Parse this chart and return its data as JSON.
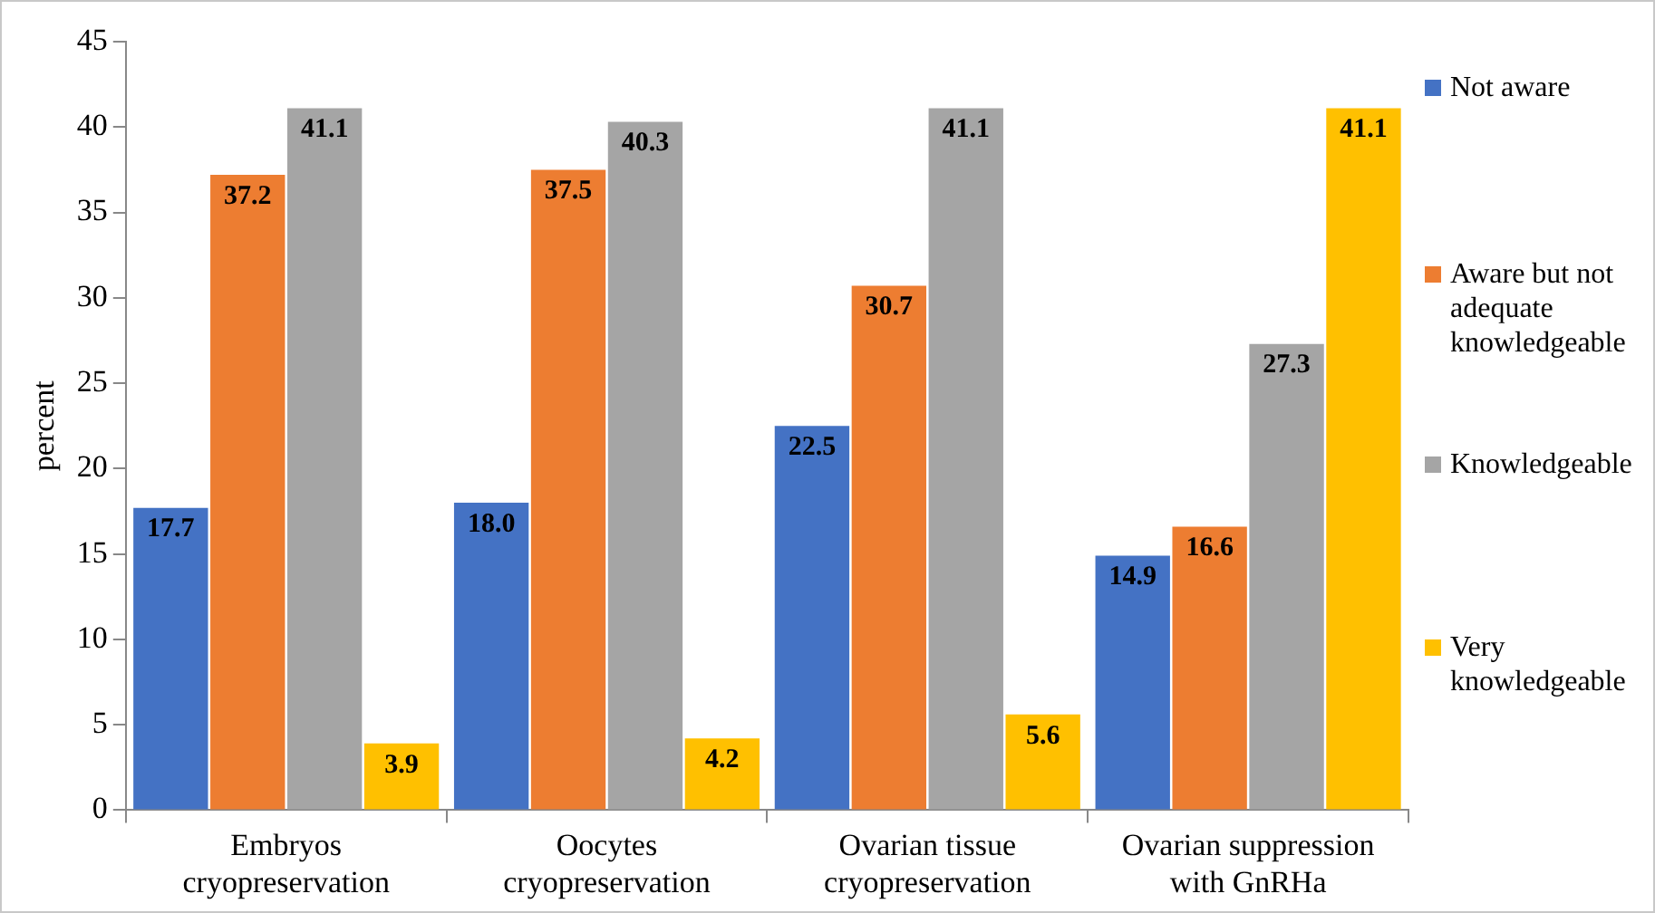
{
  "chart_data": {
    "type": "bar",
    "ylabel": "percent",
    "categories": [
      "Embryos cryopreservation",
      "Oocytes cryopreservation",
      "Ovarian tissue cryopreservation",
      "Ovarian suppression with GnRHa"
    ],
    "series": [
      {
        "name": "Not aware",
        "color": "#4472c4",
        "values": [
          17.7,
          18.0,
          22.5,
          14.9
        ],
        "value_labels": [
          "17.7",
          "18.0",
          "22.5",
          "14.9"
        ]
      },
      {
        "name": "Aware but not adequate knowledgeable",
        "color": "#ed7d31",
        "values": [
          37.2,
          37.5,
          30.7,
          16.6
        ],
        "value_labels": [
          "37.2",
          "37.5",
          "30.7",
          "16.6"
        ]
      },
      {
        "name": "Knowledgeable",
        "color": "#a5a5a5",
        "values": [
          41.1,
          40.3,
          41.1,
          27.3
        ],
        "value_labels": [
          "41.1",
          "40.3",
          "41.1",
          "27.3"
        ]
      },
      {
        "name": "Very knowledgeable",
        "color": "#ffc000",
        "values": [
          3.9,
          4.2,
          5.6,
          41.1
        ],
        "value_labels": [
          "3.9",
          "4.2",
          "5.6",
          "41.1"
        ]
      }
    ],
    "ylim": [
      0,
      45
    ],
    "yticks": [
      0,
      5,
      10,
      15,
      20,
      25,
      30,
      35,
      40,
      45
    ],
    "legend": "right",
    "grid": false
  }
}
